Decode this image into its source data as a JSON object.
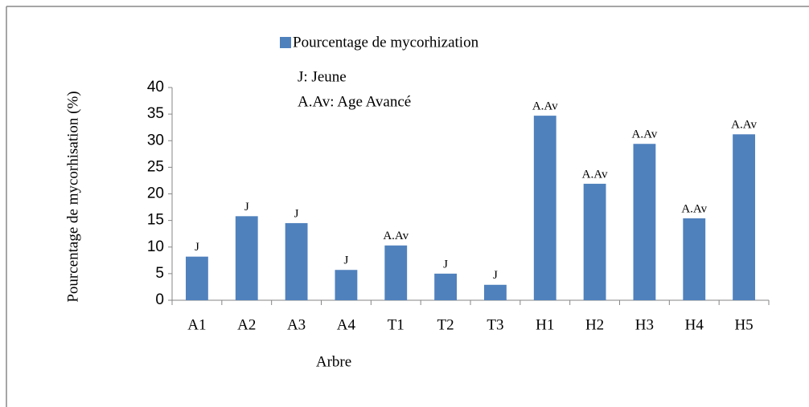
{
  "chart_data": {
    "type": "bar",
    "legend": "Pourcentage de mycorhization",
    "annotations": [
      "J: Jeune",
      "A.Av: Age Avancé"
    ],
    "y_label": "Pourcentage de mycorhisation (%)",
    "x_label": "Arbre",
    "categories": [
      "A1",
      "A2",
      "A3",
      "A4",
      "T1",
      "T2",
      "T3",
      "H1",
      "H2",
      "H3",
      "H4",
      "H5"
    ],
    "values": [
      8.2,
      15.8,
      14.5,
      5.7,
      10.3,
      5.0,
      2.9,
      34.7,
      21.9,
      29.4,
      15.4,
      31.2
    ],
    "bar_labels": [
      "J",
      "J",
      "J",
      "J",
      "A.Av",
      "J",
      "J",
      "A.Av",
      "A.Av",
      "A.Av",
      "A.Av",
      "A.Av"
    ],
    "color": "#4f81bd",
    "ylim": [
      0,
      40
    ],
    "yticks": [
      0,
      5,
      10,
      15,
      20,
      25,
      30,
      35,
      40
    ]
  }
}
